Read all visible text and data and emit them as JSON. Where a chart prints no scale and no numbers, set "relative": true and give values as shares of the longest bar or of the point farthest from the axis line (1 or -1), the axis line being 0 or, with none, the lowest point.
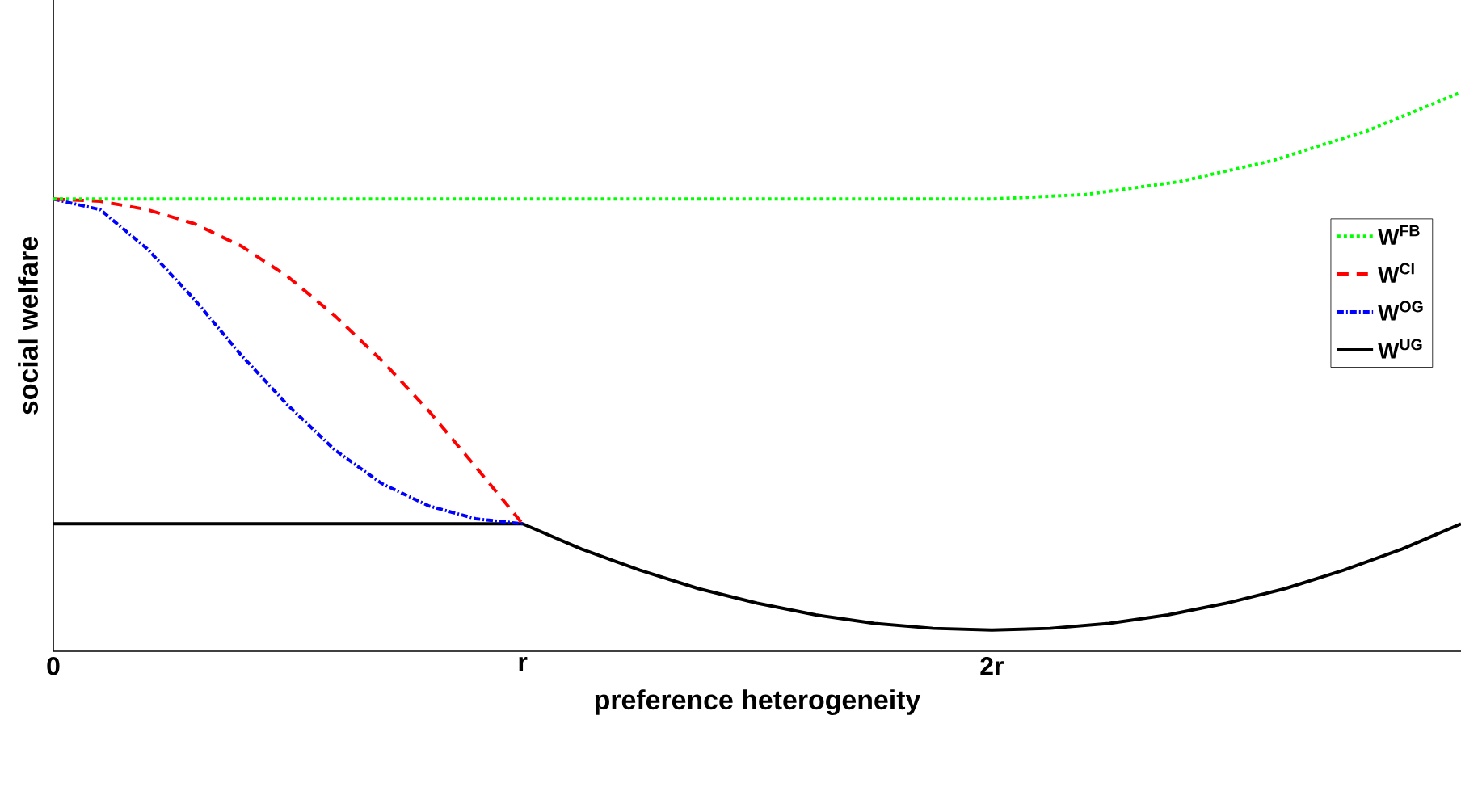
{
  "chart_data": {
    "type": "line",
    "relative": true,
    "xlabel": "preference heterogeneity",
    "ylabel": "social welfare",
    "xlim": [
      0,
      3
    ],
    "xticks": [
      {
        "value": 0,
        "label": "0"
      },
      {
        "value": 1,
        "label": "r"
      },
      {
        "value": 2,
        "label": "2r"
      }
    ],
    "x": [
      0,
      0.1,
      0.2,
      0.3,
      0.4,
      0.5,
      0.6,
      0.7,
      0.8,
      0.9,
      1
    ],
    "grid": false,
    "legend": "right",
    "tick_labels": "x",
    "series": [
      {
        "name": "W$^{FB}$",
        "color": "#00ff00",
        "line_style": "dotted",
        "x": [
          0,
          1,
          2,
          2.2,
          2.4,
          2.6,
          2.8,
          3
        ],
        "values": [
          0.809,
          0.809,
          0.809,
          0.817,
          0.84,
          0.878,
          0.931,
          1
        ]
      },
      {
        "name": "W$^{CI}$",
        "color": "#ff0000",
        "line_style": "dashed",
        "values": [
          0.809,
          0.805,
          0.79,
          0.765,
          0.725,
          0.67,
          0.6,
          0.52,
          0.43,
          0.33,
          0.228
        ]
      },
      {
        "name": "W$^{OG}$",
        "color": "#0000ff",
        "line_style": "dashdot",
        "values": [
          0.809,
          0.79,
          0.72,
          0.63,
          0.53,
          0.44,
          0.36,
          0.3,
          0.26,
          0.237,
          0.228
        ]
      },
      {
        "name": "W$^{UG}$",
        "color": "#000000",
        "line_style": "solid",
        "x": [
          0,
          1,
          1.125,
          1.25,
          1.375,
          1.5,
          1.625,
          1.75,
          1.875,
          2,
          2.125,
          2.25,
          2.375,
          2.5,
          2.625,
          2.75,
          2.875,
          3
        ],
        "values": [
          0.228,
          0.228,
          0.183,
          0.145,
          0.112,
          0.086,
          0.065,
          0.05,
          0.041,
          0.038,
          0.041,
          0.05,
          0.065,
          0.086,
          0.112,
          0.145,
          0.183,
          0.228
        ]
      }
    ]
  }
}
